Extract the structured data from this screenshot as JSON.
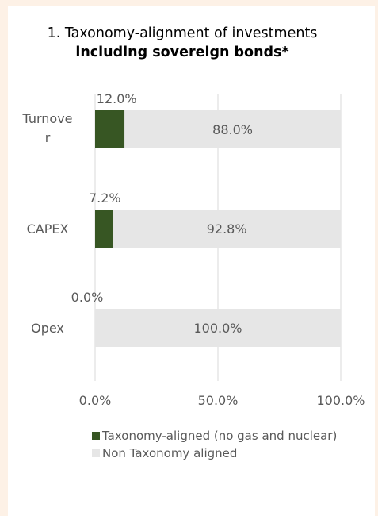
{
  "colors": {
    "aligned": "#375623",
    "non_aligned": "#e6e6e6",
    "background": "#fdf1e6"
  },
  "chart_data": {
    "type": "bar",
    "orientation": "horizontal",
    "stacked": true,
    "title": "1. Taxonomy-alignment of investments ",
    "title_bold": "including sovereign bonds*",
    "categories": [
      "Turnover",
      "CAPEX",
      "Opex"
    ],
    "series": [
      {
        "name": "Taxonomy-aligned (no gas and nuclear)",
        "values": [
          12.0,
          7.2,
          0.0
        ]
      },
      {
        "name": "Non Taxonomy aligned",
        "values": [
          88.0,
          92.8,
          100.0
        ]
      }
    ],
    "data_labels": {
      "aligned": [
        "12.0%",
        "7.2%",
        "0.0%"
      ],
      "non_aligned": [
        "88.0%",
        "92.8%",
        "100.0%"
      ]
    },
    "x_ticks": [
      "0.0%",
      "50.0%",
      "100.0%"
    ],
    "xlim": [
      0,
      100
    ],
    "grid": "vertical",
    "legend_position": "bottom"
  }
}
